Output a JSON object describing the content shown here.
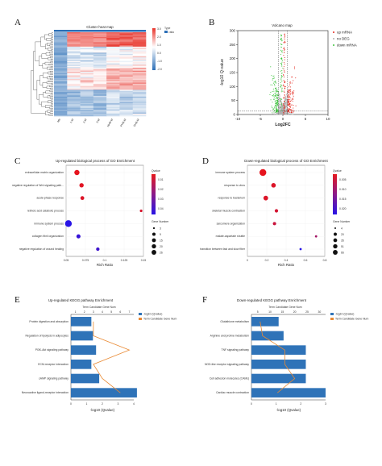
{
  "panels": {
    "a": {
      "letter": "A"
    },
    "b": {
      "letter": "B"
    },
    "c": {
      "letter": "C"
    },
    "d": {
      "letter": "D"
    },
    "e": {
      "letter": "E"
    },
    "f": {
      "letter": "F"
    }
  },
  "chart_data": [
    {
      "id": "A",
      "type": "heatmap",
      "title": "Cluster heat map",
      "legend_title": "Type",
      "legend_entry": "ratio",
      "colorbar_ticks": [
        3.0,
        2.0,
        1.0,
        0.0,
        -1.0,
        -2.0
      ],
      "columns": [
        "Mb",
        "1-M",
        "2-M",
        "3-M",
        "NHB-M",
        "PHB-M",
        "SHB-M"
      ],
      "colors": {
        "high": "#e8332a",
        "mid": "#ffffff",
        "low": "#2c6fb7"
      }
    },
    {
      "id": "B",
      "type": "scatter",
      "title": "Volcano map",
      "xlabel": "Log2FC",
      "ylabel": "-log10 Q-value",
      "xlim": [
        -10,
        10
      ],
      "ylim": [
        0,
        300
      ],
      "xticks": [
        -10,
        -5,
        0,
        5,
        10
      ],
      "yticks": [
        0,
        50,
        100,
        150,
        200,
        250,
        300
      ],
      "legend": [
        {
          "name": "up mRNA",
          "color": "#e4251b"
        },
        {
          "name": "no DEG",
          "color": "#b0b0b0"
        },
        {
          "name": "down mRNA",
          "color": "#3ec43e"
        }
      ]
    },
    {
      "id": "C",
      "type": "scatter",
      "title": "Up-regulated biological process of GO Enrichment",
      "xlabel": "Rich Ratio",
      "xlim": [
        0.05,
        0.15
      ],
      "xticks": [
        0.05,
        0.075,
        0.1,
        0.125,
        0.15
      ],
      "qvalue_title": "Qvalue",
      "qvalue_ticks": [
        "0.01",
        "0.02",
        "0.03",
        "0.04"
      ],
      "size_title": "Gene Number",
      "size_ticks": [
        3,
        9,
        15,
        20,
        26
      ],
      "terms": [
        {
          "name": "extracellular matrix organization",
          "rich": 0.064,
          "q": 0.003,
          "genes": 12
        },
        {
          "name": "negative regulation of Wnt signaling path...",
          "rich": 0.07,
          "q": 0.004,
          "genes": 7
        },
        {
          "name": "acute-phase response",
          "rich": 0.071,
          "q": 0.005,
          "genes": 5
        },
        {
          "name": "retinoic acid catabolic process",
          "rich": 0.147,
          "q": 0.006,
          "genes": 3
        },
        {
          "name": "immune system process",
          "rich": 0.053,
          "q": 0.043,
          "genes": 26
        },
        {
          "name": "collagen fibril organization",
          "rich": 0.066,
          "q": 0.04,
          "genes": 6
        },
        {
          "name": "negative regulation of wound healing",
          "rich": 0.091,
          "q": 0.038,
          "genes": 4
        }
      ]
    },
    {
      "id": "D",
      "type": "scatter",
      "title": "Down-regulated biological process of GO Enrichment",
      "xlabel": "Rich Ratio",
      "xlim": [
        0.0,
        0.8
      ],
      "xticks": [
        0.0,
        0.2,
        0.4,
        0.6,
        0.8
      ],
      "qvalue_title": "Qvalue",
      "qvalue_ticks": [
        "0.005",
        "0.010",
        "0.015",
        "0.020"
      ],
      "size_title": "Gene Number",
      "size_ticks": [
        4,
        20,
        35,
        51,
        66
      ],
      "terms": [
        {
          "name": "immune system process",
          "rich": 0.16,
          "q": 0.001,
          "genes": 66
        },
        {
          "name": "response to virus",
          "rich": 0.27,
          "q": 0.002,
          "genes": 20
        },
        {
          "name": "response to bacterium",
          "rich": 0.19,
          "q": 0.002,
          "genes": 22
        },
        {
          "name": "skeletal muscle contraction",
          "rich": 0.3,
          "q": 0.003,
          "genes": 8
        },
        {
          "name": "sarcomere organization",
          "rich": 0.28,
          "q": 0.004,
          "genes": 7
        },
        {
          "name": "malate-aspartate shuttle",
          "rich": 0.71,
          "q": 0.008,
          "genes": 4
        },
        {
          "name": "transition between fast and slow fiber",
          "rich": 0.55,
          "q": 0.021,
          "genes": 4
        }
      ]
    },
    {
      "id": "E",
      "type": "bar",
      "title": "Up-regulated KEGG pathway Enrichment",
      "top_axis_label": "Term Candidate Gene Num",
      "xlabel": "-log10  (Qvalue)",
      "xlim": [
        0,
        4
      ],
      "xticks": [
        0,
        1,
        2,
        3,
        4
      ],
      "top_ticks": [
        "1",
        "2",
        "3",
        "4",
        "5",
        "6",
        "7"
      ],
      "legend": [
        {
          "name": "-log10  (Qvalue)",
          "color": "#2f73b8"
        },
        {
          "name": "Term Candidate Gene Num",
          "color": "#e98a34"
        }
      ],
      "categories": [
        "Protein digestion and absorption",
        "Regulation of lipolysis in adipocytes",
        "PI3K-Akt signaling pathway",
        "ECM-receptor interaction",
        "cAMP signaling pathway",
        "Neuroactive ligand-receptor interaction"
      ],
      "values": [
        1.3,
        1.4,
        1.6,
        1.3,
        1.8,
        4.2
      ],
      "gene_num": [
        3,
        3,
        7,
        3,
        4,
        6
      ]
    },
    {
      "id": "F",
      "type": "bar",
      "title": "Down-regulated KEGG pathway Enrichment",
      "top_axis_label": "Term Candidate Gene Num",
      "xlabel": "-log10  (Qvalue)",
      "xlim": [
        0,
        3
      ],
      "xticks": [
        0,
        1,
        2,
        3
      ],
      "top_ticks": [
        "5",
        "10",
        "15",
        "20",
        "25",
        "30"
      ],
      "legend": [
        {
          "name": "-log10  (Qvalue)",
          "color": "#2f73b8"
        },
        {
          "name": "Term Candidate Gene Num",
          "color": "#e98a34"
        }
      ],
      "categories": [
        "Glutathione metabolism",
        "Arginine and proline metabolism",
        "TNF signaling pathway",
        "NOD-like receptor signaling pathway",
        "Cell adhesion molecules (CAMs)",
        "Cardiac muscle contraction"
      ],
      "values": [
        1.1,
        1.3,
        2.2,
        2.2,
        2.2,
        3.0
      ],
      "gene_num": [
        6,
        7,
        16,
        16,
        20,
        13
      ]
    }
  ]
}
